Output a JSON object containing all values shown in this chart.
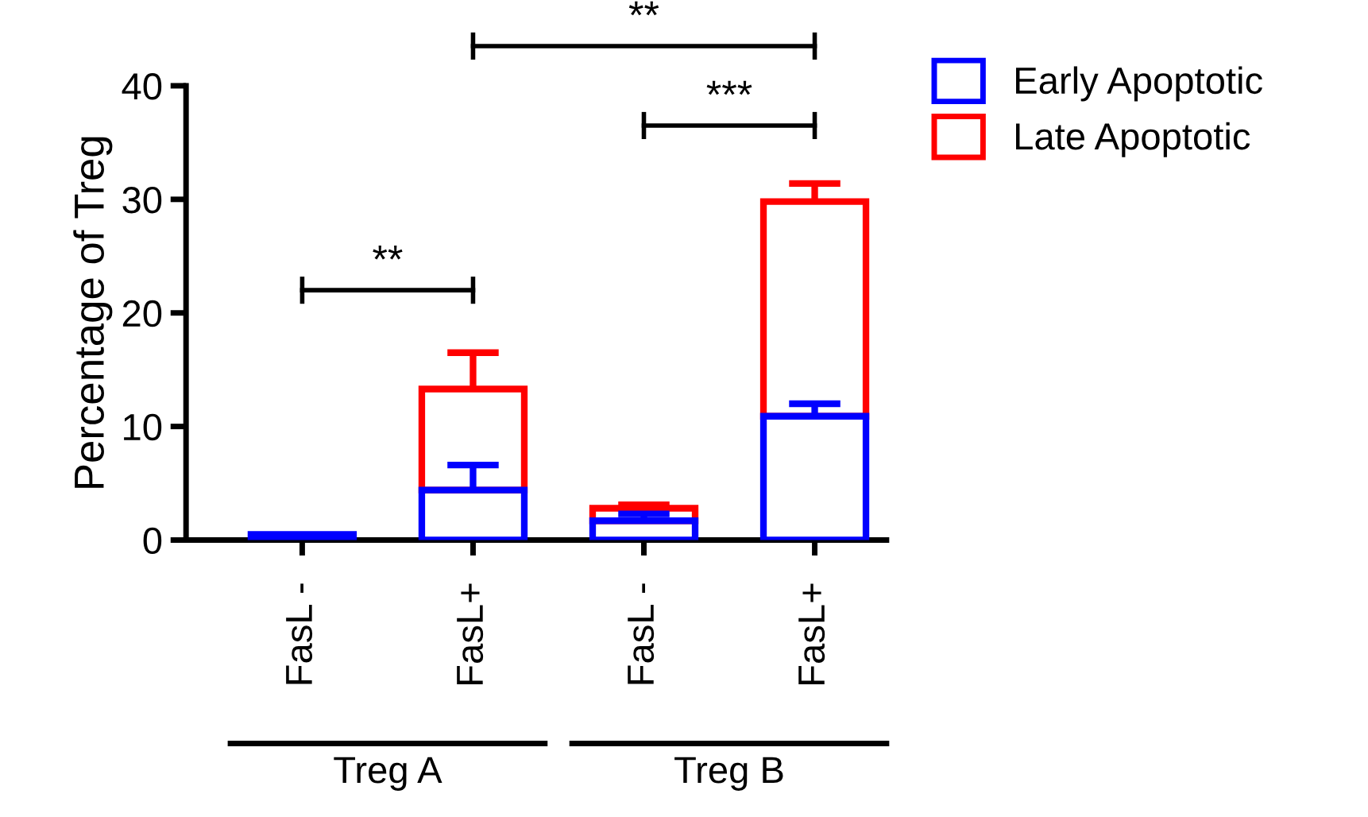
{
  "chart_data": {
    "type": "bar",
    "stacked": true,
    "ylabel": "Percentage of Treg",
    "categories": [
      "FasL -",
      "FasL+",
      "FasL -",
      "FasL+"
    ],
    "series": [
      {
        "name": "Early Apoptotic",
        "color": "#0000ff",
        "values": [
          0.5,
          4.4,
          1.7,
          10.9
        ],
        "errors": [
          null,
          [
            4.4,
            6.6
          ],
          [
            1.7,
            2.3
          ],
          [
            10.9,
            12.0
          ]
        ]
      },
      {
        "name": "Late Apoptotic",
        "color": "#ff0000",
        "values": [
          null,
          8.9,
          1.1,
          18.9
        ],
        "errors": [
          null,
          [
            13.3,
            16.5
          ],
          [
            2.8,
            3.1
          ],
          [
            29.8,
            31.4
          ]
        ]
      }
    ],
    "ylim": [
      0,
      40
    ],
    "yticks": [
      0,
      10,
      20,
      30,
      40
    ],
    "grid": false,
    "legend": "top right",
    "annotations": [
      "**",
      "***",
      "**",
      "Treg A",
      "Treg B"
    ]
  }
}
